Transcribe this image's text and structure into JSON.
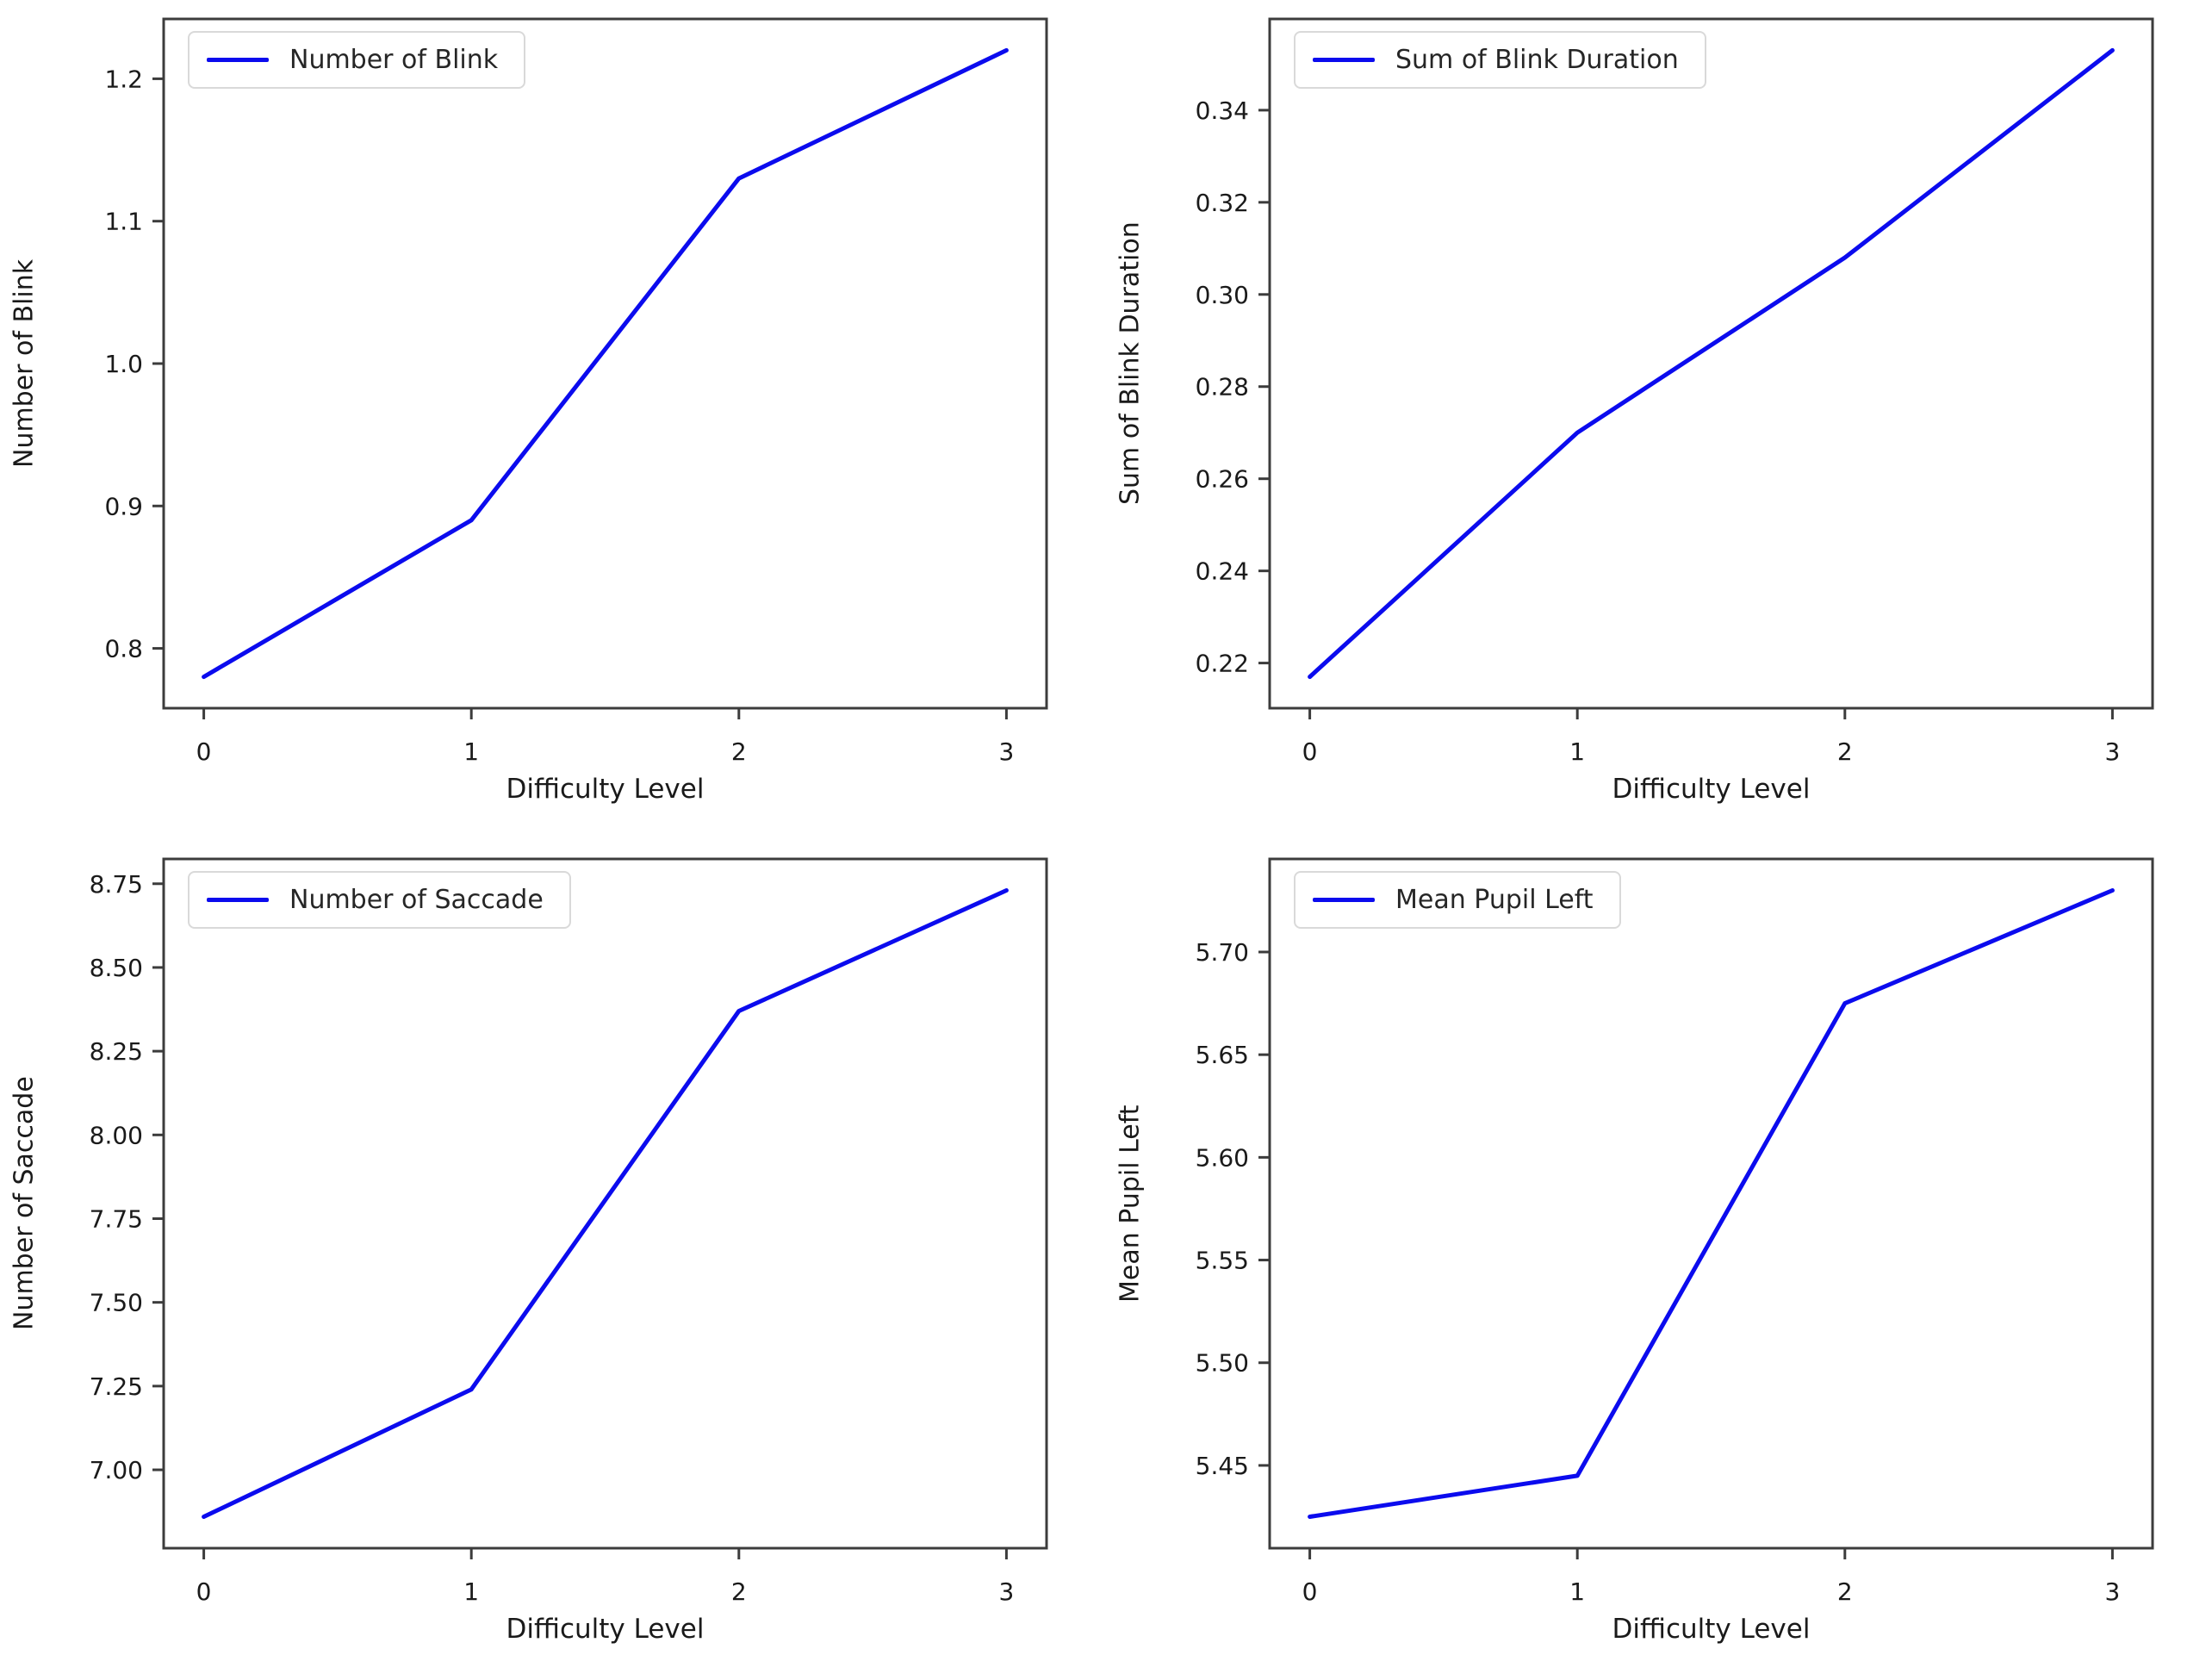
{
  "figure": {
    "background_color": "#ffffff",
    "spine_color": "#3c3c3c",
    "text_color": "#1a1a1a",
    "accent_line_color": "#0b0bee",
    "layout": "2x2 grid of line subplots",
    "shared_xlabel": "Difficulty Level"
  },
  "chart_data": [
    {
      "type": "line",
      "legend": "Number of Blink",
      "ylabel": "Number of Blink",
      "xlabel": "Difficulty Level",
      "x": [
        0,
        1,
        2,
        3
      ],
      "values": [
        0.78,
        0.89,
        1.13,
        1.22
      ],
      "xticks": [
        0,
        1,
        2,
        3
      ],
      "xtick_labels": [
        "0",
        "1",
        "2",
        "3"
      ],
      "yticks": [
        0.8,
        0.9,
        1.0,
        1.1,
        1.2
      ],
      "ytick_labels": [
        "0.8",
        "0.9",
        "1.0",
        "1.1",
        "1.2"
      ],
      "xlim": [
        -0.15,
        3.15
      ],
      "ylim": [
        0.758,
        1.242
      ],
      "line_color": "#0b0bee",
      "grid": false,
      "legend_position": "upper left"
    },
    {
      "type": "line",
      "legend": "Sum of Blink Duration",
      "ylabel": "Sum of Blink Duration",
      "xlabel": "Difficulty Level",
      "x": [
        0,
        1,
        2,
        3
      ],
      "values": [
        0.217,
        0.27,
        0.308,
        0.353
      ],
      "xticks": [
        0,
        1,
        2,
        3
      ],
      "xtick_labels": [
        "0",
        "1",
        "2",
        "3"
      ],
      "yticks": [
        0.22,
        0.24,
        0.26,
        0.28,
        0.3,
        0.32,
        0.34
      ],
      "ytick_labels": [
        "0.22",
        "0.24",
        "0.26",
        "0.28",
        "0.30",
        "0.32",
        "0.34"
      ],
      "xlim": [
        -0.15,
        3.15
      ],
      "ylim": [
        0.2102,
        0.3598
      ],
      "line_color": "#0b0bee",
      "grid": false,
      "legend_position": "upper left"
    },
    {
      "type": "line",
      "legend": "Number of Saccade",
      "ylabel": "Number of Saccade",
      "xlabel": "Difficulty Level",
      "x": [
        0,
        1,
        2,
        3
      ],
      "values": [
        6.86,
        7.24,
        8.37,
        8.73
      ],
      "xticks": [
        0,
        1,
        2,
        3
      ],
      "xtick_labels": [
        "0",
        "1",
        "2",
        "3"
      ],
      "yticks": [
        7.0,
        7.25,
        7.5,
        7.75,
        8.0,
        8.25,
        8.5,
        8.75
      ],
      "ytick_labels": [
        "7.00",
        "7.25",
        "7.50",
        "7.75",
        "8.00",
        "8.25",
        "8.50",
        "8.75"
      ],
      "xlim": [
        -0.15,
        3.15
      ],
      "ylim": [
        6.766,
        8.824
      ],
      "line_color": "#0b0bee",
      "grid": false,
      "legend_position": "upper left"
    },
    {
      "type": "line",
      "legend": "Mean Pupil Left",
      "ylabel": "Mean Pupil Left",
      "xlabel": "Difficulty Level",
      "x": [
        0,
        1,
        2,
        3
      ],
      "values": [
        5.425,
        5.445,
        5.675,
        5.73
      ],
      "xticks": [
        0,
        1,
        2,
        3
      ],
      "xtick_labels": [
        "0",
        "1",
        "2",
        "3"
      ],
      "yticks": [
        5.45,
        5.5,
        5.55,
        5.6,
        5.65,
        5.7
      ],
      "ytick_labels": [
        "5.45",
        "5.50",
        "5.55",
        "5.60",
        "5.65",
        "5.70"
      ],
      "xlim": [
        -0.15,
        3.15
      ],
      "ylim": [
        5.4097,
        5.7453
      ],
      "line_color": "#0b0bee",
      "grid": false,
      "legend_position": "upper left"
    }
  ]
}
